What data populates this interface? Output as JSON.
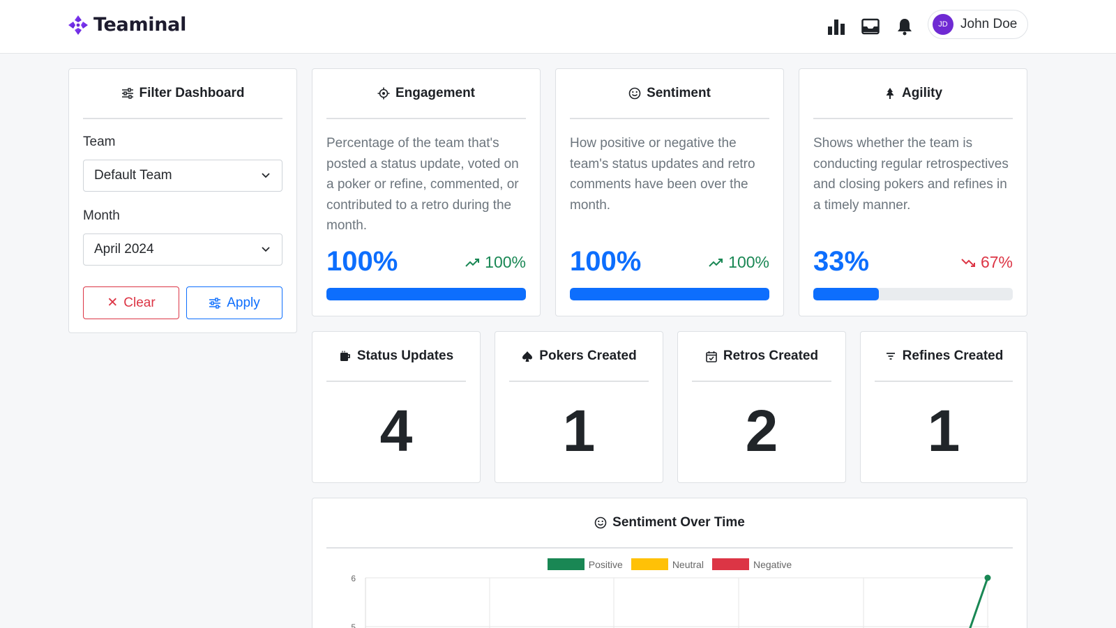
{
  "header": {
    "brand": "Teaminal",
    "user": {
      "initials": "JD",
      "name": "John Doe"
    },
    "icons": [
      "bar-chart-icon",
      "inbox-icon",
      "bell-icon"
    ]
  },
  "filter": {
    "title": "Filter Dashboard",
    "team_label": "Team",
    "team_value": "Default Team",
    "month_label": "Month",
    "month_value": "April 2024",
    "clear_label": "Clear",
    "apply_label": "Apply"
  },
  "metrics": [
    {
      "title": "Engagement",
      "icon": "target-icon",
      "description": "Percentage of the team that's posted a status update, voted on a poker or refine, commented, or contributed to a retro during the month.",
      "value": "100%",
      "progress": 1.0,
      "trend": "100%",
      "trend_direction": "up"
    },
    {
      "title": "Sentiment",
      "icon": "smile-icon",
      "description": "How positive or negative the team's status updates and retro comments have been over the month.",
      "value": "100%",
      "progress": 1.0,
      "trend": "100%",
      "trend_direction": "up"
    },
    {
      "title": "Agility",
      "icon": "tree-icon",
      "description": "Shows whether the team is conducting regular retrospectives and closing pokers and refines in a timely manner.",
      "value": "33%",
      "progress": 0.33,
      "trend": "67%",
      "trend_direction": "down"
    }
  ],
  "counts": [
    {
      "title": "Status Updates",
      "icon": "cup-icon",
      "value": "4"
    },
    {
      "title": "Pokers Created",
      "icon": "spade-icon",
      "value": "1"
    },
    {
      "title": "Retros Created",
      "icon": "calendar-check-icon",
      "value": "2"
    },
    {
      "title": "Refines Created",
      "icon": "filter-icon",
      "value": "1"
    }
  ],
  "sentiment_chart": {
    "title": "Sentiment Over Time",
    "legend": [
      "Positive",
      "Neutral",
      "Negative"
    ],
    "colors": {
      "positive": "#198754",
      "neutral": "#ffc107",
      "negative": "#dc3545",
      "primary": "#0d6efd"
    }
  },
  "chart_data": {
    "type": "line",
    "title": "Sentiment Over Time",
    "series": [
      {
        "name": "Positive",
        "color": "#198754"
      },
      {
        "name": "Neutral",
        "color": "#ffc107"
      },
      {
        "name": "Negative",
        "color": "#dc3545"
      }
    ],
    "y_ticks_visible": [
      "6",
      "5"
    ],
    "visible_point": {
      "series": "Positive",
      "y": 6
    },
    "grid": true,
    "legend_position": "top"
  }
}
